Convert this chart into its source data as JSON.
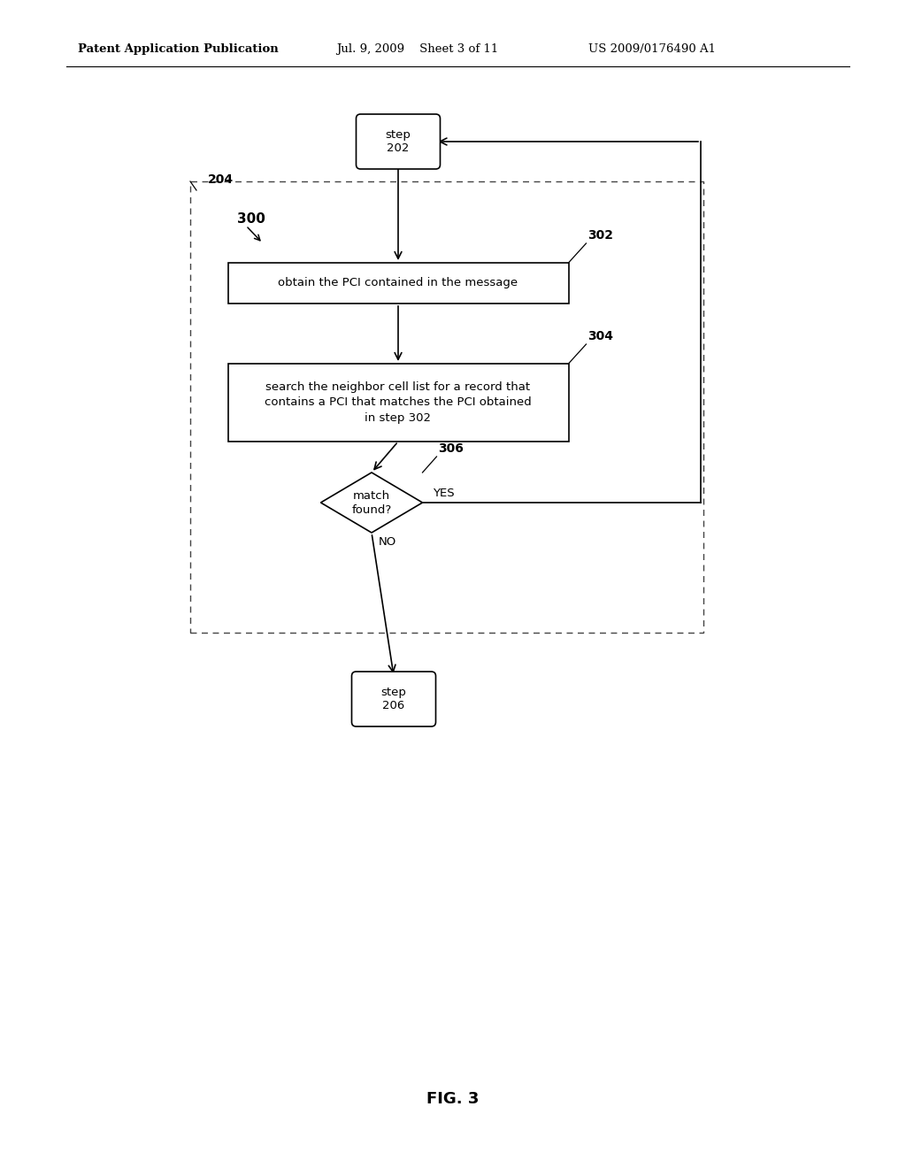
{
  "header_left": "Patent Application Publication",
  "header_mid": "Jul. 9, 2009    Sheet 3 of 11",
  "header_right": "US 2009/0176490 A1",
  "fig_label": "FIG. 3",
  "step202_text": "step\n202",
  "step206_text": "step\n206",
  "box302_text": "obtain the PCI contained in the message",
  "box304_text": "search the neighbor cell list for a record that\ncontains a PCI that matches the PCI obtained\nin step 302",
  "diamond306_text": "match\nfound?",
  "label_204": "204",
  "label_300": "300",
  "label_302": "302",
  "label_304": "304",
  "label_306": "306",
  "label_yes": "YES",
  "label_no": "NO",
  "bg_color": "#ffffff",
  "line_color": "#000000"
}
